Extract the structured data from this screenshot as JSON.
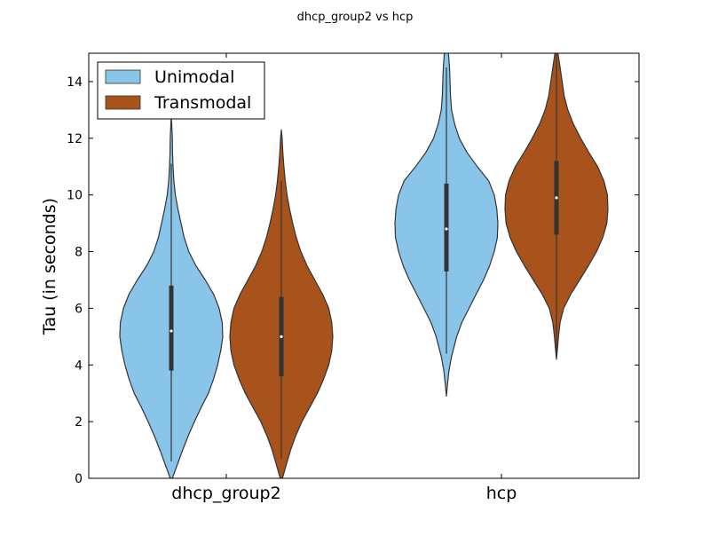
{
  "chart_data": {
    "type": "violin",
    "title": "dhcp_group2 vs hcp",
    "xlabel": "",
    "ylabel": "Tau (in seconds)",
    "ylim": [
      0,
      15
    ],
    "yticks": [
      0,
      2,
      4,
      6,
      8,
      10,
      12,
      14
    ],
    "categories": [
      "dhcp_group2",
      "hcp"
    ],
    "grid": false,
    "legend_position": "top-left",
    "series": [
      {
        "name": "Unimodal",
        "color": "#89c4e9",
        "groups": [
          {
            "category": "dhcp_group2",
            "median": 5.2,
            "q1": 3.8,
            "q3": 6.8,
            "whisker_low": 0.6,
            "whisker_high": 11.1,
            "range": [
              0,
              12.8
            ],
            "density": [
              [
                0,
                0.02
              ],
              [
                0.5,
                0.12
              ],
              [
                1,
                0.22
              ],
              [
                1.5,
                0.33
              ],
              [
                2,
                0.45
              ],
              [
                2.5,
                0.58
              ],
              [
                3,
                0.72
              ],
              [
                3.5,
                0.82
              ],
              [
                4,
                0.9
              ],
              [
                4.5,
                0.96
              ],
              [
                5,
                1.0
              ],
              [
                5.5,
                0.99
              ],
              [
                6,
                0.93
              ],
              [
                6.5,
                0.82
              ],
              [
                7,
                0.66
              ],
              [
                7.5,
                0.48
              ],
              [
                8,
                0.34
              ],
              [
                8.5,
                0.25
              ],
              [
                9,
                0.19
              ],
              [
                9.5,
                0.13
              ],
              [
                10,
                0.08
              ],
              [
                10.5,
                0.05
              ],
              [
                11,
                0.035
              ],
              [
                11.5,
                0.025
              ],
              [
                12,
                0.02
              ],
              [
                12.8,
                0.0
              ]
            ]
          },
          {
            "category": "hcp",
            "median": 8.8,
            "q1": 7.3,
            "q3": 10.4,
            "whisker_low": 4.4,
            "whisker_high": 14.5,
            "range": [
              2.9,
              15.5
            ],
            "density": [
              [
                2.9,
                0.0
              ],
              [
                3.3,
                0.02
              ],
              [
                3.8,
                0.05
              ],
              [
                4.3,
                0.1
              ],
              [
                5,
                0.2
              ],
              [
                5.5,
                0.3
              ],
              [
                6,
                0.44
              ],
              [
                6.5,
                0.58
              ],
              [
                7,
                0.72
              ],
              [
                7.5,
                0.84
              ],
              [
                8,
                0.93
              ],
              [
                8.5,
                0.99
              ],
              [
                9,
                1.0
              ],
              [
                9.5,
                0.98
              ],
              [
                10,
                0.93
              ],
              [
                10.5,
                0.82
              ],
              [
                11,
                0.6
              ],
              [
                11.5,
                0.4
              ],
              [
                12,
                0.25
              ],
              [
                12.5,
                0.16
              ],
              [
                13,
                0.1
              ],
              [
                13.5,
                0.08
              ],
              [
                14,
                0.07
              ],
              [
                14.5,
                0.06
              ],
              [
                15,
                0.04
              ],
              [
                15.5,
                0.0
              ]
            ]
          }
        ]
      },
      {
        "name": "Transmodal",
        "color": "#a9531c",
        "groups": [
          {
            "category": "dhcp_group2",
            "median": 5.0,
            "q1": 3.6,
            "q3": 6.4,
            "whisker_low": 0.7,
            "whisker_high": 10.5,
            "range": [
              0,
              12.3
            ],
            "density": [
              [
                0,
                0.02
              ],
              [
                0.5,
                0.1
              ],
              [
                1,
                0.18
              ],
              [
                1.5,
                0.28
              ],
              [
                2,
                0.4
              ],
              [
                2.5,
                0.55
              ],
              [
                3,
                0.7
              ],
              [
                3.5,
                0.82
              ],
              [
                4,
                0.92
              ],
              [
                4.5,
                0.98
              ],
              [
                5,
                1.0
              ],
              [
                5.5,
                0.98
              ],
              [
                6,
                0.92
              ],
              [
                6.5,
                0.8
              ],
              [
                7,
                0.65
              ],
              [
                7.5,
                0.5
              ],
              [
                8,
                0.38
              ],
              [
                8.5,
                0.29
              ],
              [
                9,
                0.22
              ],
              [
                9.5,
                0.16
              ],
              [
                10,
                0.11
              ],
              [
                10.5,
                0.075
              ],
              [
                11,
                0.05
              ],
              [
                11.5,
                0.03
              ],
              [
                12,
                0.015
              ],
              [
                12.3,
                0.0
              ]
            ]
          },
          {
            "category": "hcp",
            "median": 9.9,
            "q1": 8.6,
            "q3": 11.2,
            "whisker_low": 4.3,
            "whisker_high": 15.0,
            "range": [
              4.2,
              15.5
            ],
            "density": [
              [
                4.2,
                0.0
              ],
              [
                4.6,
                0.02
              ],
              [
                5,
                0.04
              ],
              [
                5.5,
                0.07
              ],
              [
                6,
                0.14
              ],
              [
                6.5,
                0.28
              ],
              [
                7,
                0.45
              ],
              [
                7.5,
                0.62
              ],
              [
                8,
                0.78
              ],
              [
                8.5,
                0.9
              ],
              [
                9,
                0.98
              ],
              [
                9.5,
                1.0
              ],
              [
                10,
                0.99
              ],
              [
                10.5,
                0.92
              ],
              [
                11,
                0.8
              ],
              [
                11.5,
                0.63
              ],
              [
                12,
                0.47
              ],
              [
                12.5,
                0.33
              ],
              [
                13,
                0.22
              ],
              [
                13.5,
                0.15
              ],
              [
                14,
                0.11
              ],
              [
                14.5,
                0.07
              ],
              [
                15,
                0.03
              ],
              [
                15.5,
                0.0
              ]
            ]
          }
        ]
      }
    ]
  }
}
